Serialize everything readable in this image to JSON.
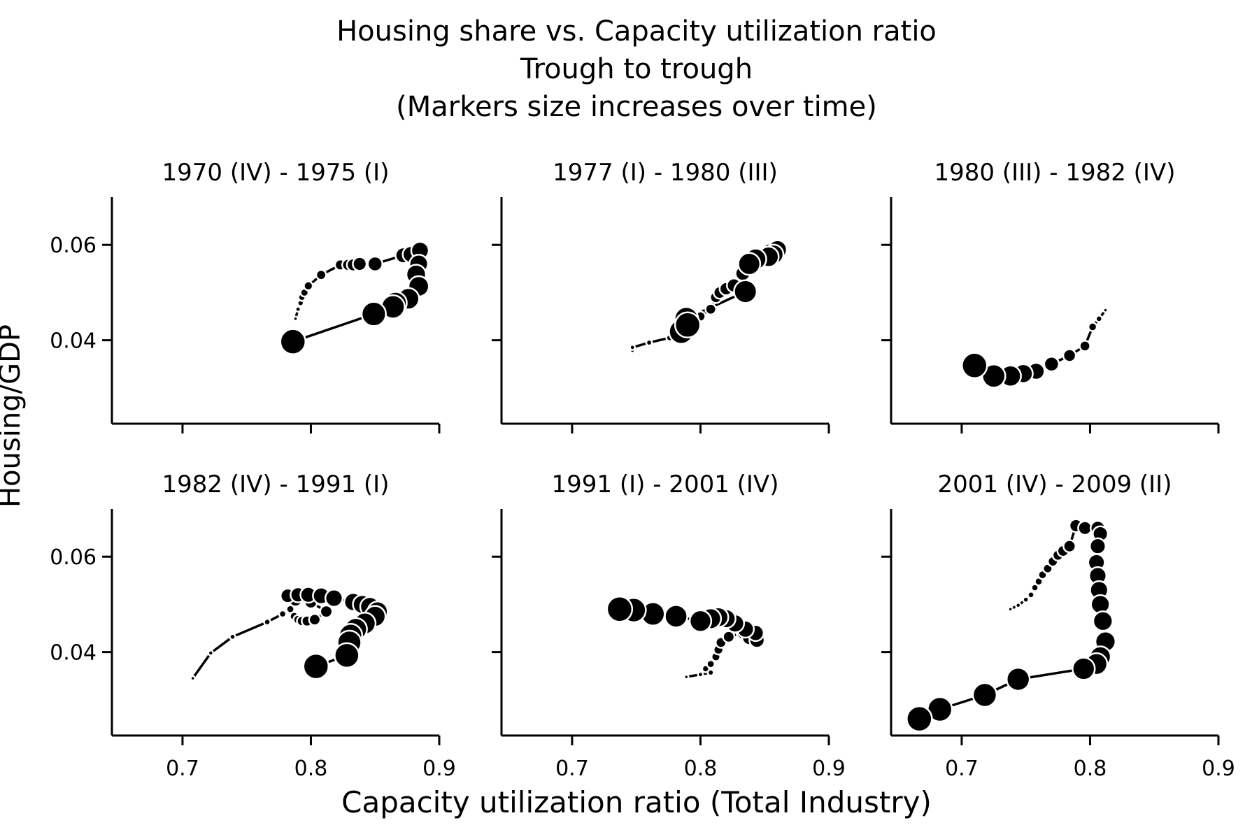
{
  "figure": {
    "title_lines": [
      "Housing share vs. Capacity utilization ratio",
      "Trough to trough",
      "(Markers size increases over time)"
    ],
    "xlabel": "Capacity utilization ratio (Total Industry)",
    "ylabel": "Housing/GDP"
  },
  "chart_data": [
    {
      "type": "scatter",
      "title": "1970 (IV) - 1975 (I)",
      "xlim": [
        0.645,
        0.9
      ],
      "ylim": [
        0.0225,
        0.07
      ],
      "xticks": [
        "0.7",
        "0.8",
        "0.9"
      ],
      "yticks": [
        "0.04",
        "0.06"
      ],
      "show_xticklabels": false,
      "show_yticklabels": true,
      "x": [
        0.788,
        0.79,
        0.792,
        0.793,
        0.795,
        0.798,
        0.808,
        0.823,
        0.829,
        0.833,
        0.838,
        0.85,
        0.872,
        0.878,
        0.885,
        0.884,
        0.882,
        0.884,
        0.876,
        0.866,
        0.864,
        0.849,
        0.786
      ],
      "y": [
        0.0445,
        0.0465,
        0.0478,
        0.049,
        0.05,
        0.0514,
        0.0537,
        0.0558,
        0.0558,
        0.0558,
        0.056,
        0.056,
        0.0578,
        0.058,
        0.0588,
        0.056,
        0.0538,
        0.0513,
        0.0487,
        0.0478,
        0.047,
        0.0455,
        0.0397
      ]
    },
    {
      "type": "scatter",
      "title": "1977 (I) - 1980 (III)",
      "xlim": [
        0.645,
        0.9
      ],
      "ylim": [
        0.0225,
        0.07
      ],
      "xticks": [
        "0.7",
        "0.8",
        "0.9"
      ],
      "yticks": [
        "0.04",
        "0.06"
      ],
      "show_xticklabels": false,
      "show_yticklabels": false,
      "x": [
        0.747,
        0.747,
        0.76,
        0.776,
        0.781,
        0.786,
        0.794,
        0.8,
        0.808,
        0.812,
        0.815,
        0.82,
        0.826,
        0.833,
        0.84,
        0.845,
        0.85,
        0.855,
        0.86,
        0.857,
        0.853,
        0.843,
        0.838,
        0.835,
        0.789,
        0.785,
        0.79
      ],
      "y": [
        0.0378,
        0.0385,
        0.0395,
        0.0405,
        0.0418,
        0.0425,
        0.044,
        0.045,
        0.0465,
        0.049,
        0.05,
        0.0508,
        0.0515,
        0.054,
        0.056,
        0.057,
        0.0575,
        0.0585,
        0.059,
        0.058,
        0.0575,
        0.057,
        0.056,
        0.0502,
        0.0445,
        0.0418,
        0.0432
      ]
    },
    {
      "type": "scatter",
      "title": "1980 (III) - 1982 (IV)",
      "xlim": [
        0.645,
        0.9
      ],
      "ylim": [
        0.0225,
        0.07
      ],
      "xticks": [
        "0.7",
        "0.8",
        "0.9"
      ],
      "yticks": [
        "0.04",
        "0.06"
      ],
      "show_xticklabels": false,
      "show_yticklabels": false,
      "x": [
        0.812,
        0.807,
        0.802,
        0.796,
        0.784,
        0.77,
        0.758,
        0.748,
        0.738,
        0.725,
        0.71
      ],
      "y": [
        0.0463,
        0.0445,
        0.0428,
        0.0388,
        0.0368,
        0.035,
        0.0335,
        0.033,
        0.0325,
        0.0325,
        0.0347
      ]
    },
    {
      "type": "scatter",
      "title": "1982 (IV) - 1991 (I)",
      "xlim": [
        0.645,
        0.9
      ],
      "ylim": [
        0.0225,
        0.07
      ],
      "xticks": [
        "0.7",
        "0.8",
        "0.9"
      ],
      "yticks": [
        "0.04",
        "0.06"
      ],
      "show_xticklabels": false,
      "show_yticklabels": true,
      "x": [
        0.708,
        0.722,
        0.739,
        0.766,
        0.778,
        0.784,
        0.787,
        0.79,
        0.793,
        0.797,
        0.803,
        0.812,
        0.8,
        0.788,
        0.782,
        0.79,
        0.798,
        0.808,
        0.818,
        0.833,
        0.84,
        0.846,
        0.852,
        0.85,
        0.842,
        0.835,
        0.831,
        0.83,
        0.828,
        0.804
      ],
      "y": [
        0.0345,
        0.0398,
        0.0432,
        0.0463,
        0.048,
        0.049,
        0.0475,
        0.0468,
        0.0465,
        0.0465,
        0.0468,
        0.0485,
        0.0505,
        0.051,
        0.0518,
        0.052,
        0.052,
        0.0518,
        0.0513,
        0.0505,
        0.05,
        0.0495,
        0.0485,
        0.0475,
        0.046,
        0.0448,
        0.0435,
        0.042,
        0.0393,
        0.037
      ]
    },
    {
      "type": "scatter",
      "title": "1991 (I) - 2001 (IV)",
      "xlim": [
        0.645,
        0.9
      ],
      "ylim": [
        0.0225,
        0.07
      ],
      "xticks": [
        "0.7",
        "0.8",
        "0.9"
      ],
      "yticks": [
        "0.04",
        "0.06"
      ],
      "show_xticklabels": false,
      "show_yticklabels": false,
      "x": [
        0.789,
        0.8,
        0.808,
        0.804,
        0.808,
        0.812,
        0.814,
        0.816,
        0.822,
        0.833,
        0.84,
        0.838,
        0.844,
        0.843,
        0.835,
        0.827,
        0.82,
        0.814,
        0.808,
        0.8,
        0.781,
        0.763,
        0.748,
        0.737
      ],
      "y": [
        0.0348,
        0.0353,
        0.0357,
        0.0365,
        0.0375,
        0.039,
        0.0405,
        0.042,
        0.0432,
        0.044,
        0.0445,
        0.043,
        0.0425,
        0.044,
        0.0448,
        0.046,
        0.047,
        0.0473,
        0.047,
        0.0465,
        0.0475,
        0.048,
        0.0488,
        0.049
      ]
    },
    {
      "type": "scatter",
      "title": "2001 (IV) - 2009 (II)",
      "xlim": [
        0.645,
        0.9
      ],
      "ylim": [
        0.0225,
        0.07
      ],
      "xticks": [
        "0.7",
        "0.8",
        "0.9"
      ],
      "yticks": [
        "0.04",
        "0.06"
      ],
      "show_xticklabels": false,
      "show_yticklabels": false,
      "x": [
        0.738,
        0.744,
        0.75,
        0.754,
        0.757,
        0.76,
        0.763,
        0.767,
        0.771,
        0.775,
        0.779,
        0.784,
        0.789,
        0.796,
        0.806,
        0.808,
        0.806,
        0.805,
        0.806,
        0.807,
        0.808,
        0.81,
        0.812,
        0.808,
        0.805,
        0.795,
        0.744,
        0.718,
        0.683,
        0.667
      ],
      "y": [
        0.049,
        0.0498,
        0.051,
        0.052,
        0.0535,
        0.0548,
        0.0562,
        0.0575,
        0.059,
        0.0603,
        0.0612,
        0.0622,
        0.0665,
        0.066,
        0.066,
        0.0648,
        0.0622,
        0.0588,
        0.056,
        0.053,
        0.05,
        0.0465,
        0.0422,
        0.039,
        0.0375,
        0.0365,
        0.0343,
        0.031,
        0.028,
        0.026
      ]
    }
  ]
}
